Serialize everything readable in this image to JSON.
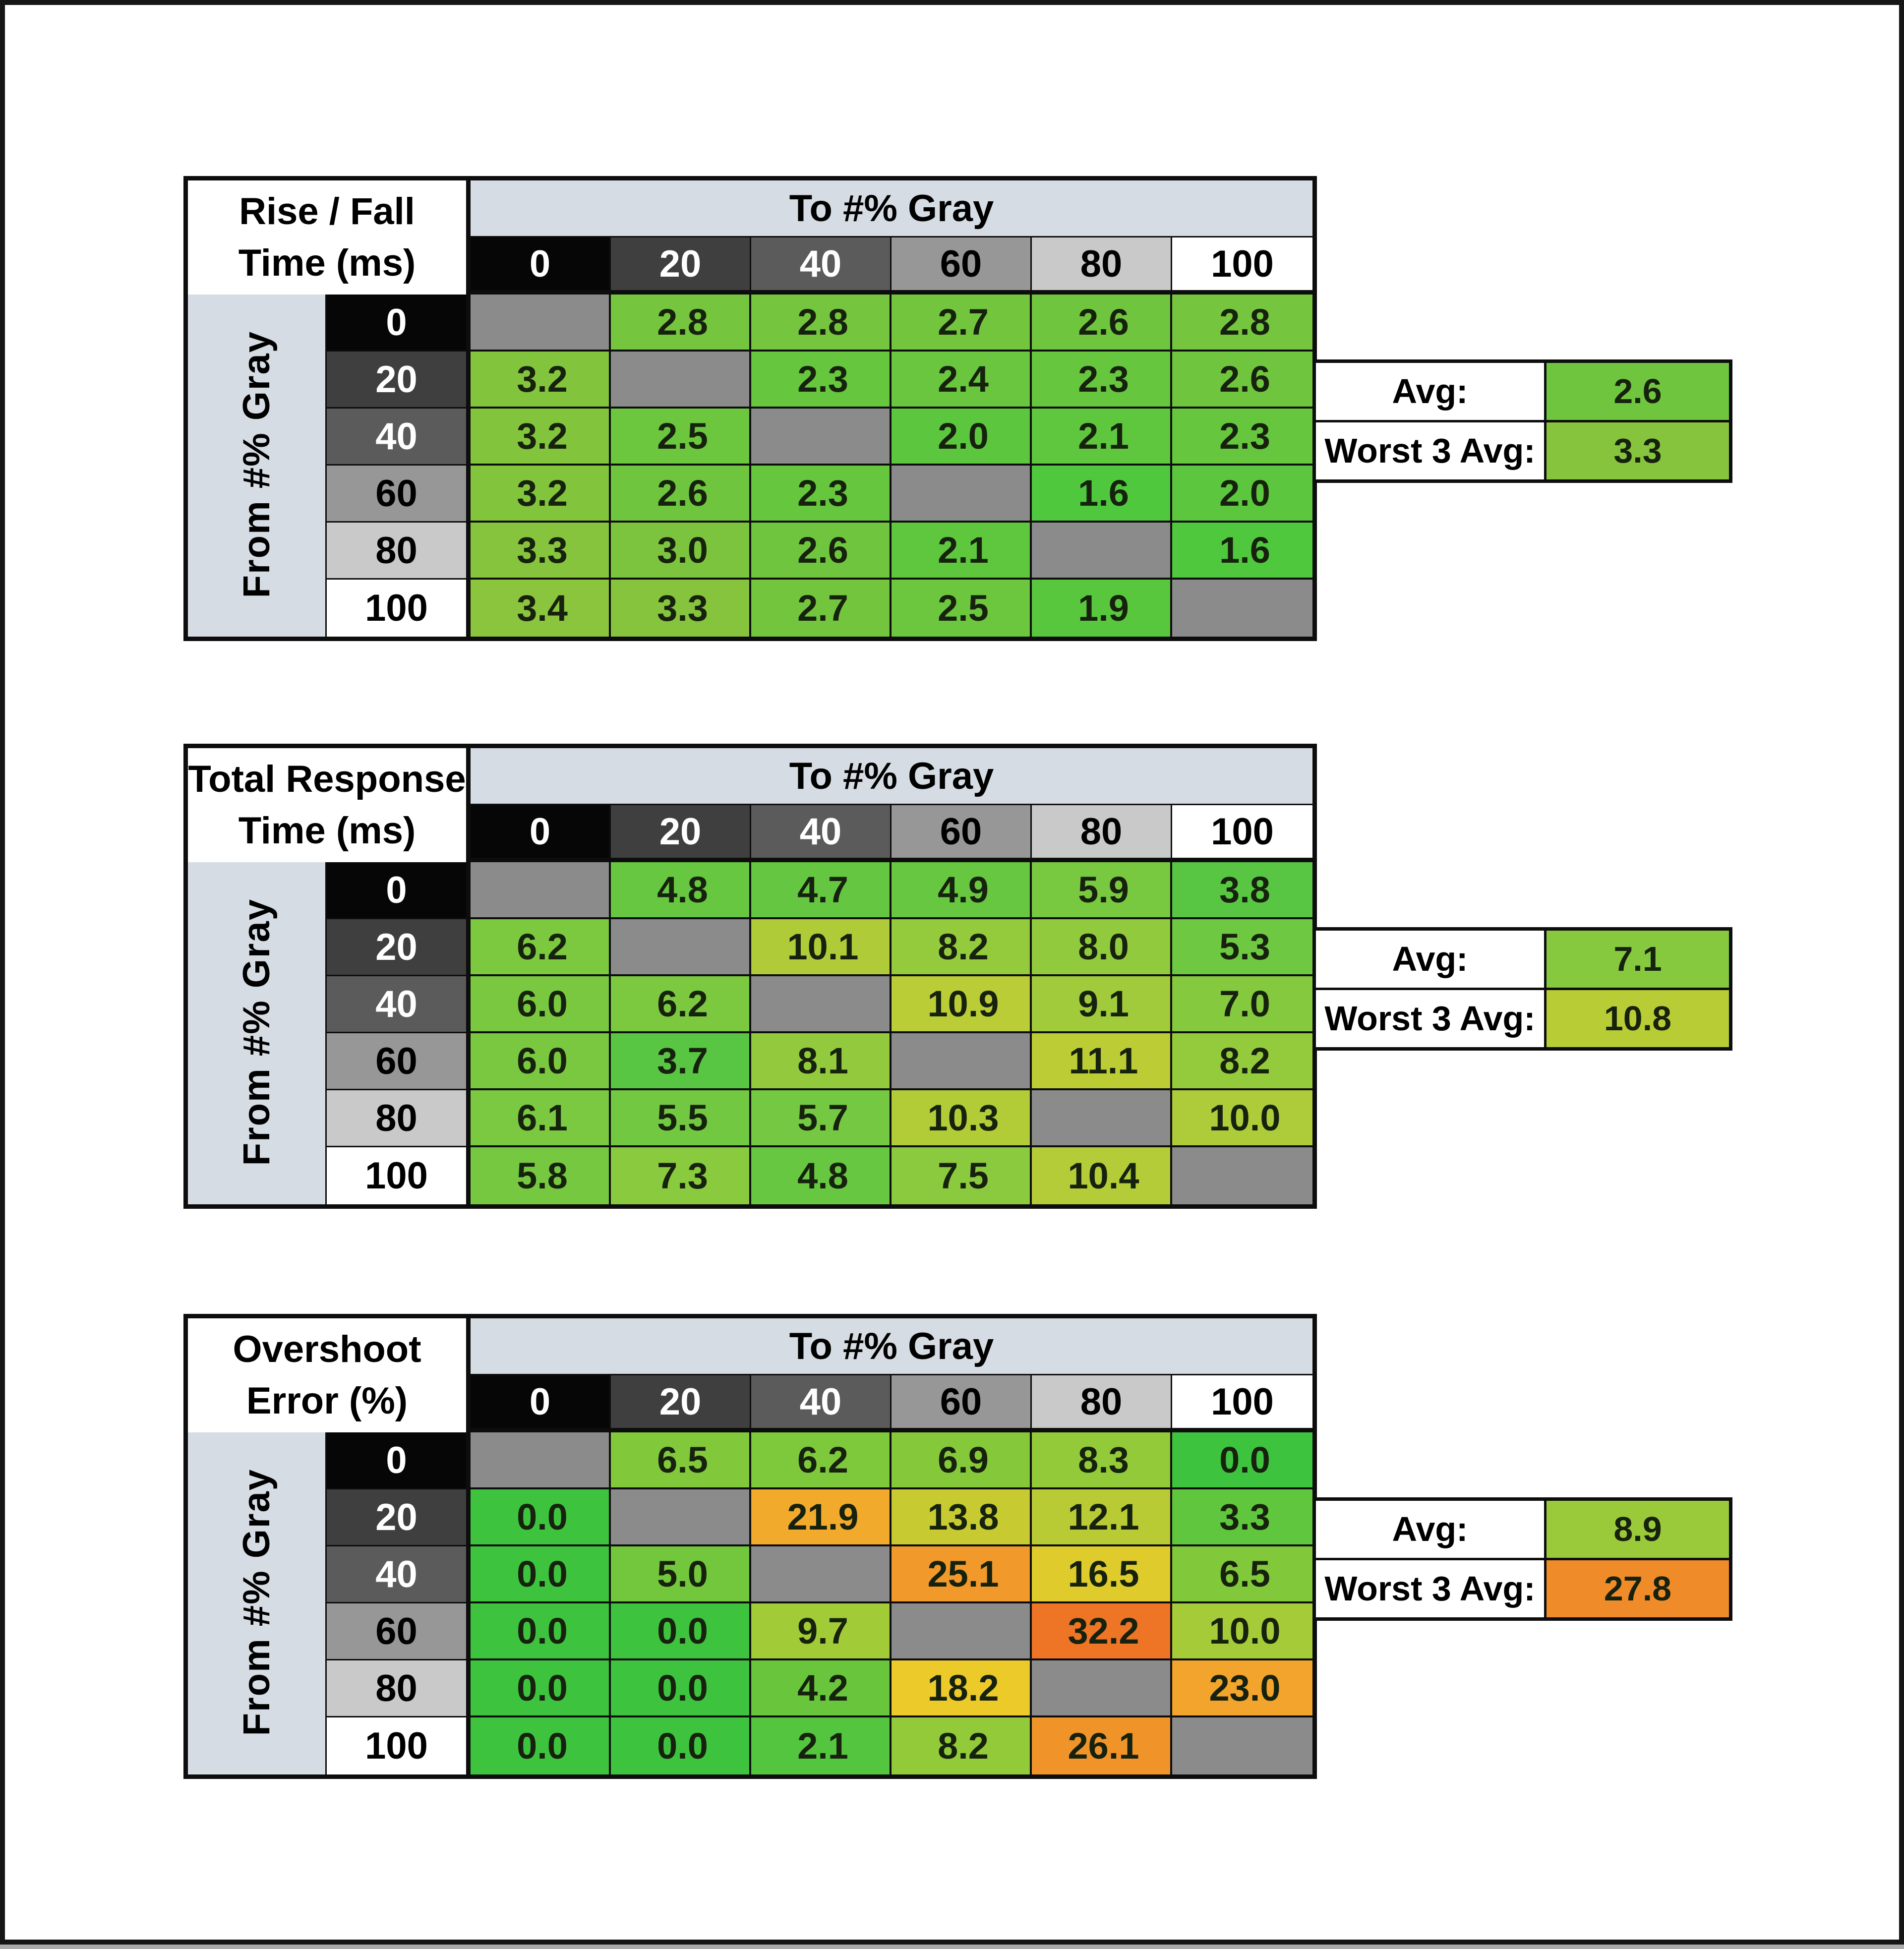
{
  "labels": {
    "to_header": "To #% Gray",
    "from_header": "From #% Gray",
    "avg": "Avg:",
    "worst3": "Worst 3 Avg:"
  },
  "axis": {
    "cols": [
      "0",
      "20",
      "40",
      "60",
      "80",
      "100"
    ],
    "rows": [
      "0",
      "20",
      "40",
      "60",
      "80",
      "100"
    ]
  },
  "palette": {
    "band_bg": "#d6dce3",
    "diagonal": "#8b8b8b",
    "grid": "#0d0d0d",
    "header_shades": [
      {
        "bg": "#060606",
        "fg": "#ffffff"
      },
      {
        "bg": "#3f3f3f",
        "fg": "#ffffff"
      },
      {
        "bg": "#5b5b5b",
        "fg": "#ffffff"
      },
      {
        "bg": "#979797",
        "fg": "#000000"
      },
      {
        "bg": "#c9c9c9",
        "fg": "#000000"
      },
      {
        "bg": "#ffffff",
        "fg": "#000000"
      }
    ]
  },
  "tables": [
    {
      "name": "rise-fall-time",
      "title": [
        "Rise / Fall",
        "Time (ms)"
      ],
      "avg": "2.6",
      "avg_color": "#70c53e",
      "worst3": "3.3",
      "worst3_color": "#86c43d",
      "colors": [
        [
          null,
          "#76c53e",
          "#76c53e",
          "#73c53e",
          "#70c53e",
          "#76c53e"
        ],
        [
          "#83c43d",
          null,
          "#66c63e",
          "#69c63e",
          "#66c63e",
          "#70c53e"
        ],
        [
          "#83c43d",
          "#6cc63e",
          null,
          "#5cc73e",
          "#5fc73e",
          "#66c63e"
        ],
        [
          "#83c43d",
          "#70c53e",
          "#66c63e",
          null,
          "#4fc83e",
          "#5cc73e"
        ],
        [
          "#86c43d",
          "#7dc43e",
          "#70c53e",
          "#5fc73e",
          null,
          "#4fc83e"
        ],
        [
          "#8bc43d",
          "#86c43d",
          "#73c53e",
          "#6cc63e",
          "#58c73e",
          null
        ]
      ]
    },
    {
      "name": "total-response-time",
      "title": [
        "Total Response",
        "Time (ms)"
      ],
      "avg": "7.1",
      "avg_color": "#86c93f",
      "worst3": "10.8",
      "worst3_color": "#b8cc36",
      "colors": [
        [
          null,
          "#67c741",
          "#65c741",
          "#68c741",
          "#78c840",
          "#59c643"
        ],
        [
          "#7cc940",
          null,
          "#afcc38",
          "#94cb3c",
          "#92ca3d",
          "#6fc842"
        ],
        [
          "#79c840",
          "#7cc940",
          null,
          "#bacc36",
          "#a1cb3b",
          "#85c93f"
        ],
        [
          "#79c840",
          "#58c643",
          "#93ca3d",
          null,
          "#bccc35",
          "#94cb3c"
        ],
        [
          "#7bc940",
          "#72c841",
          "#75c841",
          "#b2cc38",
          null,
          "#aecc39"
        ],
        [
          "#76c841",
          "#89ca3e",
          "#67c741",
          "#8bca3e",
          "#b3cc38",
          null
        ]
      ]
    },
    {
      "name": "overshoot-error",
      "title": [
        "Overshoot",
        "Error (%)"
      ],
      "avg": "8.9",
      "avg_color": "#9aca39",
      "worst3": "27.8",
      "worst3_color": "#f08b29",
      "colors": [
        [
          null,
          "#81c83a",
          "#7ec83b",
          "#85c93a",
          "#93ca39",
          "#3ec33f"
        ],
        [
          "#3ec33f",
          null,
          "#f2aa2d",
          "#c7cb31",
          "#b8cb34",
          "#60c63d"
        ],
        [
          "#3ec33f",
          "#72c73c",
          null,
          "#f1992b",
          "#dfcc2c",
          "#81c83a"
        ],
        [
          "#3ec33f",
          "#3ec33f",
          "#a2cb38",
          null,
          "#ee7426",
          "#a5cb38"
        ],
        [
          "#3ec33f",
          "#3ec33f",
          "#69c63c",
          "#ecca29",
          null,
          "#f2a42c"
        ],
        [
          "#3ec33f",
          "#3ec33f",
          "#54c53e",
          "#92ca39",
          "#f0942a",
          null
        ]
      ]
    }
  ],
  "chart_data": [
    {
      "type": "heatmap",
      "title": "Rise / Fall Time (ms)",
      "xlabel": "To #% Gray",
      "ylabel": "From #% Gray",
      "categories_x": [
        0,
        20,
        40,
        60,
        80,
        100
      ],
      "categories_y": [
        0,
        20,
        40,
        60,
        80,
        100
      ],
      "values": [
        [
          null,
          2.8,
          2.8,
          2.7,
          2.6,
          2.8
        ],
        [
          3.2,
          null,
          2.3,
          2.4,
          2.3,
          2.6
        ],
        [
          3.2,
          2.5,
          null,
          2.0,
          2.1,
          2.3
        ],
        [
          3.2,
          2.6,
          2.3,
          null,
          1.6,
          2.0
        ],
        [
          3.3,
          3.0,
          2.6,
          2.1,
          null,
          1.6
        ],
        [
          3.4,
          3.3,
          2.7,
          2.5,
          1.9,
          null
        ]
      ],
      "avg": 2.6,
      "worst_3_avg": 3.3
    },
    {
      "type": "heatmap",
      "title": "Total Response Time (ms)",
      "xlabel": "To #% Gray",
      "ylabel": "From #% Gray",
      "categories_x": [
        0,
        20,
        40,
        60,
        80,
        100
      ],
      "categories_y": [
        0,
        20,
        40,
        60,
        80,
        100
      ],
      "values": [
        [
          null,
          4.8,
          4.7,
          4.9,
          5.9,
          3.8
        ],
        [
          6.2,
          null,
          10.1,
          8.2,
          8.0,
          5.3
        ],
        [
          6.0,
          6.2,
          null,
          10.9,
          9.1,
          7.0
        ],
        [
          6.0,
          3.7,
          8.1,
          null,
          11.1,
          8.2
        ],
        [
          6.1,
          5.5,
          5.7,
          10.3,
          null,
          10.0
        ],
        [
          5.8,
          7.3,
          4.8,
          7.5,
          10.4,
          null
        ]
      ],
      "avg": 7.1,
      "worst_3_avg": 10.8
    },
    {
      "type": "heatmap",
      "title": "Overshoot Error (%)",
      "xlabel": "To #% Gray",
      "ylabel": "From #% Gray",
      "categories_x": [
        0,
        20,
        40,
        60,
        80,
        100
      ],
      "categories_y": [
        0,
        20,
        40,
        60,
        80,
        100
      ],
      "values": [
        [
          null,
          6.5,
          6.2,
          6.9,
          8.3,
          0.0
        ],
        [
          0.0,
          null,
          21.9,
          13.8,
          12.1,
          3.3
        ],
        [
          0.0,
          5.0,
          null,
          25.1,
          16.5,
          6.5
        ],
        [
          0.0,
          0.0,
          9.7,
          null,
          32.2,
          10.0
        ],
        [
          0.0,
          0.0,
          4.2,
          18.2,
          null,
          23.0
        ],
        [
          0.0,
          0.0,
          2.1,
          8.2,
          26.1,
          null
        ]
      ],
      "avg": 8.9,
      "worst_3_avg": 27.8
    }
  ]
}
